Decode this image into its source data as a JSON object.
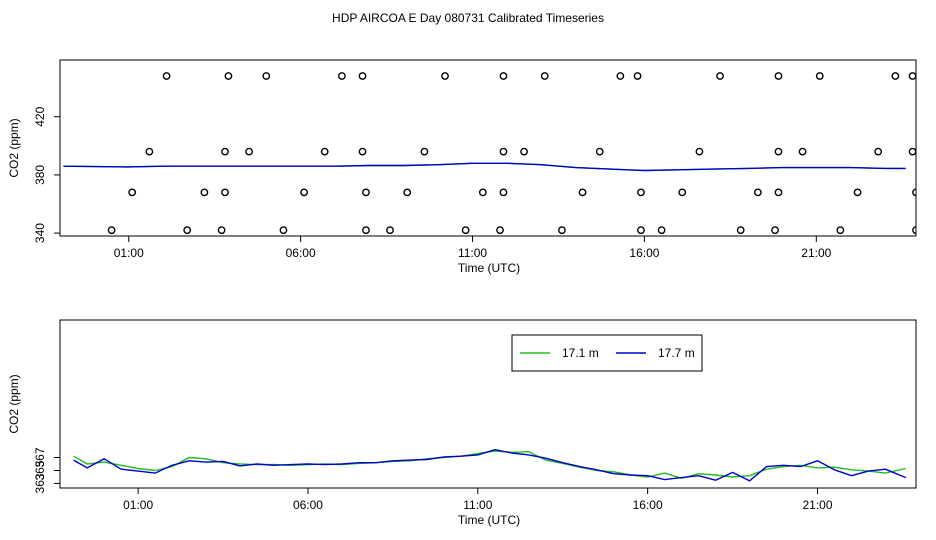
{
  "title": "HDP AIRCOA E  Day 080731  Calibrated Timeseries",
  "chart_data": [
    {
      "type": "scatter",
      "xlabel": "Time (UTC)",
      "ylabel": "CO2 (ppm)",
      "xlim": [
        -1.0,
        23.9
      ],
      "ylim": [
        338,
        459
      ],
      "x_ticks": [
        1,
        6,
        11,
        16,
        21
      ],
      "x_tick_labels": [
        "01:00",
        "06:00",
        "11:00",
        "16:00",
        "21:00"
      ],
      "y_ticks": [
        340,
        380,
        420
      ],
      "y_tick_labels": [
        "340",
        "380",
        "420"
      ],
      "grid": false,
      "colors": {
        "series_a": "#22bb22",
        "series_b": "#0000cc",
        "markers": "#000000"
      },
      "calibration_points": [
        {
          "x": 0.5,
          "y": 342
        },
        {
          "x": 1.1,
          "y": 368
        },
        {
          "x": 1.6,
          "y": 396
        },
        {
          "x": 2.1,
          "y": 448
        },
        {
          "x": 2.7,
          "y": 342
        },
        {
          "x": 3.2,
          "y": 368
        },
        {
          "x": 3.7,
          "y": 342
        },
        {
          "x": 3.8,
          "y": 368
        },
        {
          "x": 3.8,
          "y": 396
        },
        {
          "x": 3.9,
          "y": 448
        },
        {
          "x": 4.5,
          "y": 396
        },
        {
          "x": 5.0,
          "y": 448
        },
        {
          "x": 5.5,
          "y": 342
        },
        {
          "x": 6.1,
          "y": 368
        },
        {
          "x": 6.7,
          "y": 396
        },
        {
          "x": 7.2,
          "y": 448
        },
        {
          "x": 7.8,
          "y": 448
        },
        {
          "x": 7.8,
          "y": 396
        },
        {
          "x": 7.9,
          "y": 368
        },
        {
          "x": 7.9,
          "y": 342
        },
        {
          "x": 8.6,
          "y": 342
        },
        {
          "x": 9.1,
          "y": 368
        },
        {
          "x": 9.6,
          "y": 396
        },
        {
          "x": 10.2,
          "y": 448
        },
        {
          "x": 10.8,
          "y": 342
        },
        {
          "x": 11.3,
          "y": 368
        },
        {
          "x": 11.8,
          "y": 342
        },
        {
          "x": 11.9,
          "y": 368
        },
        {
          "x": 11.9,
          "y": 396
        },
        {
          "x": 11.9,
          "y": 448
        },
        {
          "x": 12.5,
          "y": 396
        },
        {
          "x": 13.1,
          "y": 448
        },
        {
          "x": 13.6,
          "y": 342
        },
        {
          "x": 14.2,
          "y": 368
        },
        {
          "x": 14.7,
          "y": 396
        },
        {
          "x": 15.3,
          "y": 448
        },
        {
          "x": 15.8,
          "y": 448
        },
        {
          "x": 15.9,
          "y": 368
        },
        {
          "x": 15.9,
          "y": 342
        },
        {
          "x": 16.5,
          "y": 342
        },
        {
          "x": 17.1,
          "y": 368
        },
        {
          "x": 17.6,
          "y": 396
        },
        {
          "x": 18.2,
          "y": 448
        },
        {
          "x": 18.8,
          "y": 342
        },
        {
          "x": 19.3,
          "y": 368
        },
        {
          "x": 19.8,
          "y": 342
        },
        {
          "x": 19.9,
          "y": 368
        },
        {
          "x": 19.9,
          "y": 396
        },
        {
          "x": 19.9,
          "y": 448
        },
        {
          "x": 20.6,
          "y": 396
        },
        {
          "x": 21.1,
          "y": 448
        },
        {
          "x": 21.7,
          "y": 342
        },
        {
          "x": 22.2,
          "y": 368
        },
        {
          "x": 22.8,
          "y": 396
        },
        {
          "x": 23.3,
          "y": 448
        },
        {
          "x": 23.8,
          "y": 448
        },
        {
          "x": 23.8,
          "y": 396
        },
        {
          "x": 23.9,
          "y": 368
        },
        {
          "x": 23.9,
          "y": 342
        }
      ],
      "series": [
        {
          "x": [
            -0.9,
            1,
            2,
            3,
            4,
            5,
            6,
            7,
            8,
            9,
            10,
            11,
            12,
            13,
            14,
            15,
            16,
            17,
            18,
            19,
            20,
            21,
            22,
            23,
            23.6
          ],
          "values": [
            386,
            385.5,
            386,
            386,
            386,
            386,
            386,
            386,
            386.5,
            386.5,
            387,
            388,
            388,
            387,
            385,
            384,
            383,
            383.5,
            384,
            384.5,
            385,
            385,
            385,
            384.5,
            384.5
          ]
        },
        {
          "x": [
            -0.9,
            1,
            2,
            3,
            4,
            5,
            6,
            7,
            8,
            9,
            10,
            11,
            12,
            13,
            14,
            15,
            16,
            17,
            18,
            19,
            20,
            21,
            22,
            23,
            23.6
          ],
          "values": [
            386,
            385.5,
            386,
            386,
            386,
            386,
            386,
            386,
            386.5,
            386.5,
            387,
            388,
            388,
            387,
            385,
            384,
            383,
            383.5,
            384,
            384.5,
            385,
            385,
            385,
            384.5,
            384.5
          ]
        }
      ]
    },
    {
      "type": "line",
      "xlabel": "Time (UTC)",
      "ylabel": "CO2 (ppm)",
      "xlim": [
        -1.3,
        23.9
      ],
      "ylim": [
        362.3,
        388.2
      ],
      "x_ticks": [
        1,
        6,
        11,
        16,
        21
      ],
      "x_tick_labels": [
        "01:00",
        "06:00",
        "11:00",
        "16:00",
        "21:00"
      ],
      "y_ticks": [
        363,
        365,
        367
      ],
      "y_tick_labels": [
        "363",
        "365",
        "367"
      ],
      "grid": false,
      "legend_position": "top-right",
      "series": [
        {
          "name": "17.1 m",
          "color": "#22bb22",
          "x": [
            -0.9,
            -0.5,
            0,
            0.5,
            1,
            1.5,
            2,
            2.5,
            3,
            3.5,
            4,
            4.5,
            5,
            5.5,
            6,
            6.5,
            7,
            7.5,
            8,
            8.5,
            9,
            9.5,
            10,
            10.5,
            11,
            11.5,
            12,
            12.5,
            13,
            13.5,
            14,
            14.5,
            15,
            15.5,
            16,
            16.5,
            17,
            17.5,
            18,
            18.5,
            19,
            19.5,
            20,
            20.5,
            21,
            21.5,
            22,
            22.5,
            23,
            23.6
          ],
          "values": [
            367.2,
            366.0,
            366.3,
            365.8,
            365.3,
            365.0,
            365.6,
            367.0,
            366.8,
            366.2,
            366.0,
            365.9,
            365.9,
            365.8,
            365.9,
            366.0,
            365.9,
            366.1,
            366.2,
            366.4,
            366.5,
            366.8,
            367.0,
            367.2,
            367.6,
            368.0,
            367.8,
            367.9,
            366.6,
            366.1,
            365.5,
            365.0,
            364.8,
            364.3,
            364.0,
            364.6,
            363.8,
            364.5,
            364.3,
            364.0,
            364.2,
            365.2,
            365.6,
            365.8,
            365.4,
            365.5,
            365.1,
            364.9,
            364.6,
            365.3
          ]
        },
        {
          "name": "17.7 m",
          "color": "#0000cc",
          "x": [
            -0.9,
            -0.5,
            0,
            0.5,
            1,
            1.5,
            2,
            2.5,
            3,
            3.5,
            4,
            4.5,
            5,
            5.5,
            6,
            6.5,
            7,
            7.5,
            8,
            8.5,
            9,
            9.5,
            10,
            10.5,
            11,
            11.5,
            12,
            12.5,
            13,
            13.5,
            14,
            14.5,
            15,
            15.5,
            16,
            16.5,
            17,
            17.5,
            18,
            18.5,
            19,
            19.5,
            20,
            20.5,
            21,
            21.5,
            22,
            22.5,
            23,
            23.6
          ],
          "values": [
            366.6,
            365.4,
            366.8,
            365.2,
            364.9,
            364.6,
            365.8,
            366.5,
            366.3,
            366.4,
            365.7,
            366.0,
            365.8,
            365.9,
            366.0,
            365.9,
            366.0,
            366.2,
            366.2,
            366.5,
            366.6,
            366.7,
            367.1,
            367.2,
            367.4,
            368.2,
            367.7,
            367.4,
            366.9,
            366.2,
            365.6,
            365.1,
            364.5,
            364.3,
            364.2,
            363.6,
            363.9,
            364.2,
            363.5,
            364.7,
            363.4,
            365.6,
            365.8,
            365.6,
            366.5,
            365.1,
            364.2,
            364.9,
            365.2,
            363.9
          ]
        }
      ]
    }
  ]
}
